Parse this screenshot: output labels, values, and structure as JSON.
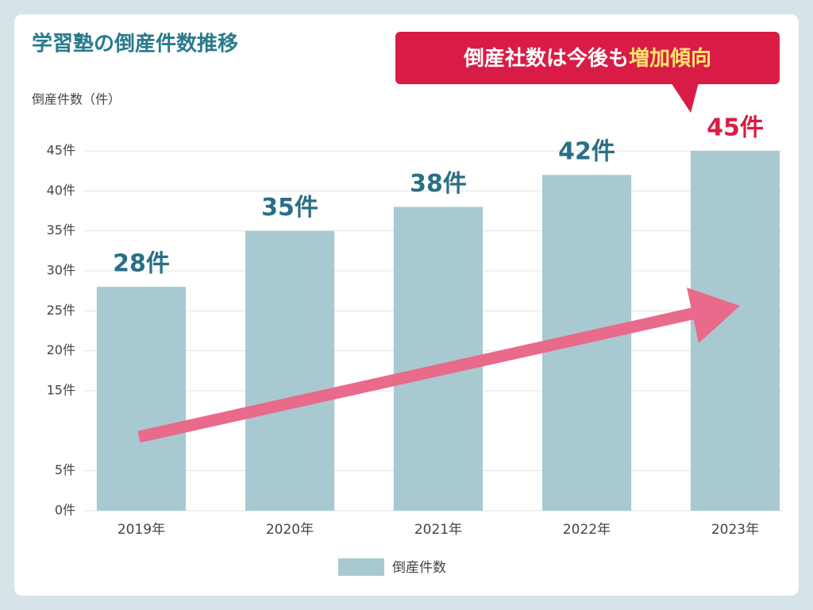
{
  "chart_data": {
    "type": "bar",
    "title": "学習塾の倒産件数推移",
    "y_label": "倒産件数（件）",
    "annotation": {
      "text": "倒産社数は今後も",
      "highlight": "増加傾向"
    },
    "categories": [
      "2019年",
      "2020年",
      "2021年",
      "2022年",
      "2023年"
    ],
    "series": [
      {
        "name": "倒産件数",
        "color": "#a9c9d1",
        "values": [
          28,
          35,
          38,
          42,
          45
        ],
        "value_labels": [
          "28件",
          "35件",
          "38件",
          "42件",
          "45件"
        ],
        "label_colors": [
          "#2a6f85",
          "#2a6f85",
          "#2a6f85",
          "#2a6f85",
          "#d81c45"
        ]
      }
    ],
    "ylim": [
      0,
      45
    ],
    "yticks": [
      {
        "value": 0,
        "label": "0件"
      },
      {
        "value": 5,
        "label": "5件"
      },
      {
        "value": 15,
        "label": "15件"
      },
      {
        "value": 20,
        "label": "20件"
      },
      {
        "value": 25,
        "label": "25件"
      },
      {
        "value": 30,
        "label": "30件"
      },
      {
        "value": 35,
        "label": "35件"
      },
      {
        "value": 40,
        "label": "40件"
      },
      {
        "value": 45,
        "label": "45件"
      }
    ],
    "grid": true
  }
}
